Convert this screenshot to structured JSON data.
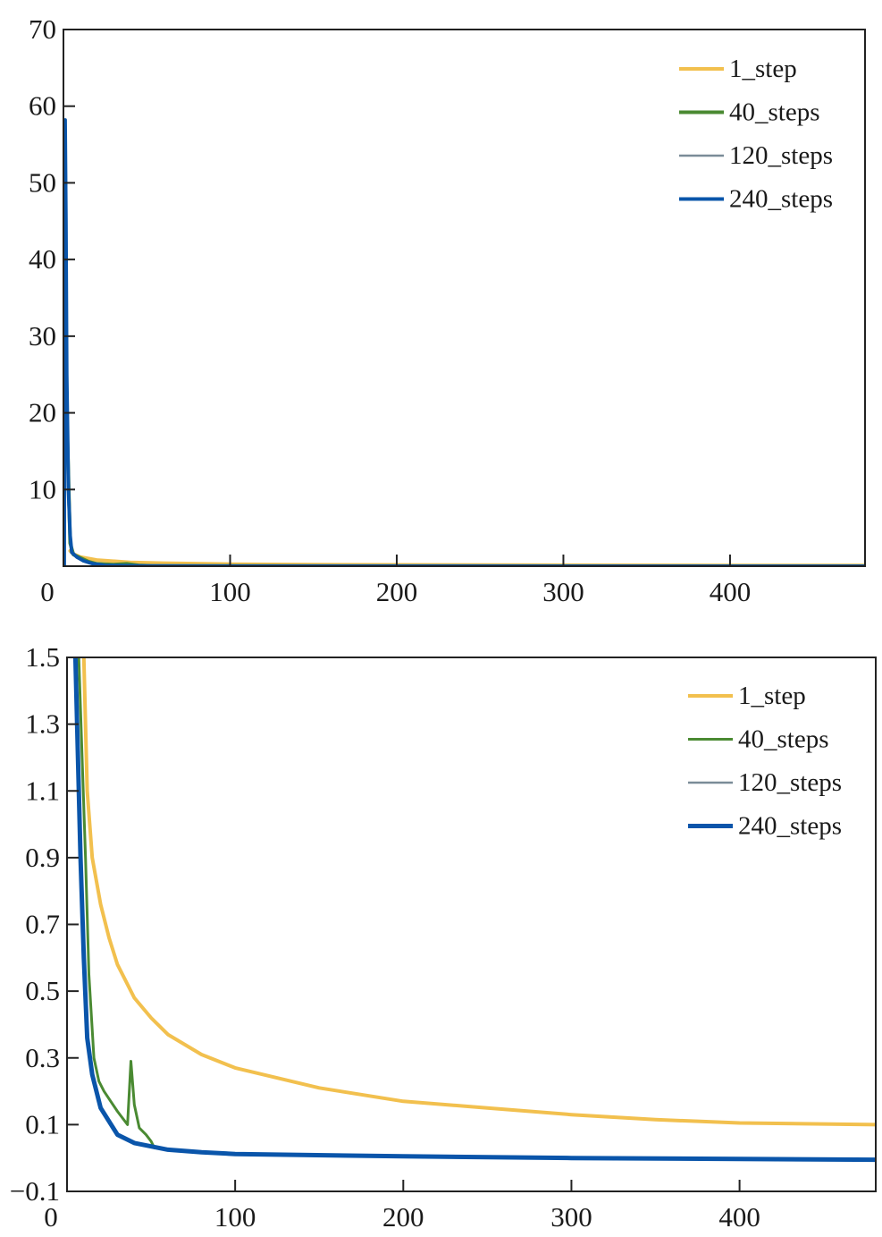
{
  "chart_data": [
    {
      "type": "line",
      "title": "",
      "xlabel": "",
      "ylabel": "",
      "xlim": [
        0,
        481
      ],
      "ylim": [
        0,
        70
      ],
      "xticks": [
        0,
        100,
        200,
        300,
        400
      ],
      "yticks": [
        10,
        20,
        30,
        40,
        50,
        60,
        70
      ],
      "xtick_labels": [
        "0",
        "100",
        "200",
        "300",
        "400"
      ],
      "ytick_labels": [
        "10",
        "20",
        "30",
        "40",
        "50",
        "60",
        "70"
      ],
      "grid": false,
      "legend_position": "top-right",
      "series": [
        {
          "name": "1_step",
          "color": "#f2c04e",
          "width": 4,
          "x": [
            4,
            6,
            10,
            20,
            40,
            60,
            100,
            150,
            200,
            300,
            400,
            481
          ],
          "y": [
            2.0,
            1.6,
            1.2,
            0.8,
            0.5,
            0.4,
            0.27,
            0.2,
            0.17,
            0.13,
            0.11,
            0.1
          ]
        },
        {
          "name": "40_steps",
          "color": "#4a8a32",
          "width": 4,
          "x": [
            2,
            4,
            6,
            10,
            15,
            20,
            30,
            38,
            45,
            52,
            100,
            481
          ],
          "y": [
            20,
            3,
            1.5,
            1.1,
            0.6,
            0.3,
            0.2,
            0.3,
            0.1,
            0.05,
            0.02,
            0.0
          ]
        },
        {
          "name": "120_steps",
          "color": "#7a8c98",
          "width": 2.5,
          "x": [
            1,
            2,
            3,
            5,
            8,
            15,
            25,
            50,
            481
          ],
          "y": [
            57,
            25,
            8,
            2,
            1.1,
            0.4,
            0.1,
            0.03,
            0.0
          ]
        },
        {
          "name": "240_steps",
          "color": "#0a55aa",
          "width": 4,
          "x": [
            0.5,
            1,
            1.5,
            2,
            3,
            4,
            5,
            8,
            12,
            18,
            25,
            50,
            100,
            481
          ],
          "y": [
            0,
            58.2,
            45,
            25,
            10,
            4,
            1.8,
            1.2,
            0.7,
            0.3,
            0.1,
            0.03,
            0.01,
            0.0
          ]
        }
      ]
    },
    {
      "type": "line",
      "title": "",
      "xlabel": "",
      "ylabel": "",
      "xlim": [
        0,
        481
      ],
      "ylim": [
        -0.1,
        1.5
      ],
      "xticks": [
        0,
        100,
        200,
        300,
        400
      ],
      "yticks": [
        -0.1,
        0.1,
        0.3,
        0.5,
        0.7,
        0.9,
        1.1,
        1.3,
        1.5
      ],
      "xtick_labels": [
        "0",
        "100",
        "200",
        "300",
        "400"
      ],
      "ytick_labels": [
        "−0.1",
        "0.1",
        "0.3",
        "0.5",
        "0.7",
        "0.9",
        "1.1",
        "1.3",
        "1.5"
      ],
      "grid": false,
      "legend_position": "top-right",
      "series": [
        {
          "name": "1_step",
          "color": "#f2c04e",
          "width": 4,
          "x": [
            10,
            12,
            15,
            20,
            25,
            30,
            40,
            50,
            60,
            80,
            100,
            150,
            200,
            250,
            300,
            350,
            400,
            481
          ],
          "y": [
            1.5,
            1.1,
            0.9,
            0.76,
            0.66,
            0.58,
            0.48,
            0.42,
            0.37,
            0.31,
            0.27,
            0.21,
            0.17,
            0.15,
            0.13,
            0.115,
            0.105,
            0.1
          ]
        },
        {
          "name": "40_steps",
          "color": "#4a8a32",
          "width": 3,
          "x": [
            7,
            9,
            11,
            13,
            16,
            19,
            22,
            26,
            30,
            36,
            38,
            40,
            43,
            47,
            50,
            52
          ],
          "y": [
            1.5,
            1.2,
            0.9,
            0.55,
            0.3,
            0.23,
            0.2,
            0.17,
            0.14,
            0.1,
            0.29,
            0.16,
            0.09,
            0.07,
            0.05,
            0.03
          ]
        },
        {
          "name": "120_steps",
          "color": "#7a8c98",
          "width": 2.5,
          "x": [
            5,
            8,
            10,
            12,
            15,
            20,
            30,
            40,
            60,
            100,
            200,
            300,
            481
          ],
          "y": [
            1.5,
            0.9,
            0.6,
            0.38,
            0.26,
            0.15,
            0.07,
            0.045,
            0.025,
            0.012,
            0.005,
            0.0,
            -0.005
          ]
        },
        {
          "name": "240_steps",
          "color": "#0a55aa",
          "width": 5,
          "x": [
            5,
            8,
            10,
            12,
            15,
            20,
            30,
            40,
            60,
            80,
            100,
            200,
            300,
            400,
            481
          ],
          "y": [
            1.5,
            0.9,
            0.6,
            0.36,
            0.25,
            0.15,
            0.07,
            0.045,
            0.025,
            0.017,
            0.012,
            0.005,
            0.0,
            -0.003,
            -0.005
          ]
        }
      ]
    }
  ]
}
